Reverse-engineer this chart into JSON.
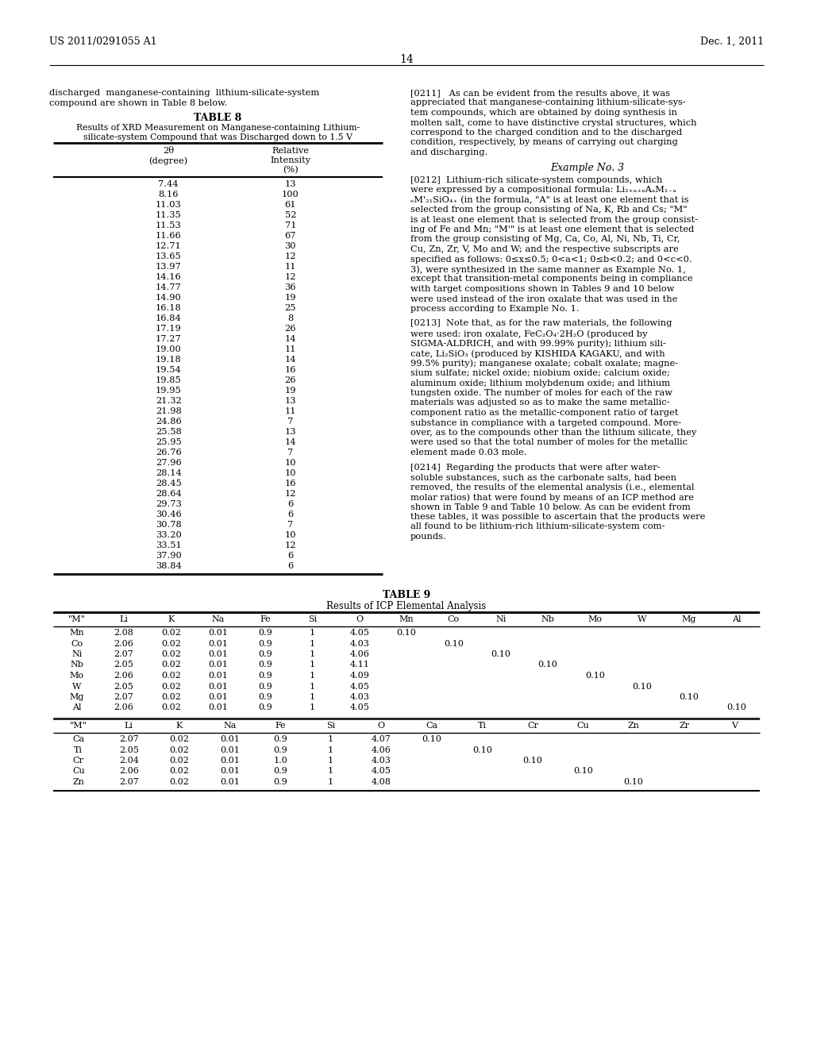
{
  "page_header_left": "US 2011/0291055 A1",
  "page_header_right": "Dec. 1, 2011",
  "page_number": "14",
  "left_col_intro": "discharged  manganese-containing  lithium-silicate-system\ncompound are shown in Table 8 below.",
  "table8_title": "TABLE 8",
  "table8_subtitle1": "Results of XRD Measurement on Manganese-containing Lithium-",
  "table8_subtitle2": "silicate-system Compound that was Discharged down to 1.5 V",
  "table8_col1_header_line1": "2θ",
  "table8_col1_header_line2": "(degree)",
  "table8_col2_header_line1": "Relative",
  "table8_col2_header_line2": "Intensity",
  "table8_col2_header_line3": "(%)",
  "table8_data": [
    [
      "7.44",
      "13"
    ],
    [
      "8.16",
      "100"
    ],
    [
      "11.03",
      "61"
    ],
    [
      "11.35",
      "52"
    ],
    [
      "11.53",
      "71"
    ],
    [
      "11.66",
      "67"
    ],
    [
      "12.71",
      "30"
    ],
    [
      "13.65",
      "12"
    ],
    [
      "13.97",
      "11"
    ],
    [
      "14.16",
      "12"
    ],
    [
      "14.77",
      "36"
    ],
    [
      "14.90",
      "19"
    ],
    [
      "16.18",
      "25"
    ],
    [
      "16.84",
      "8"
    ],
    [
      "17.19",
      "26"
    ],
    [
      "17.27",
      "14"
    ],
    [
      "19.00",
      "11"
    ],
    [
      "19.18",
      "14"
    ],
    [
      "19.54",
      "16"
    ],
    [
      "19.85",
      "26"
    ],
    [
      "19.95",
      "19"
    ],
    [
      "21.32",
      "13"
    ],
    [
      "21.98",
      "11"
    ],
    [
      "24.86",
      "7"
    ],
    [
      "25.58",
      "13"
    ],
    [
      "25.95",
      "14"
    ],
    [
      "26.76",
      "7"
    ],
    [
      "27.96",
      "10"
    ],
    [
      "28.14",
      "10"
    ],
    [
      "28.45",
      "16"
    ],
    [
      "28.64",
      "12"
    ],
    [
      "29.73",
      "6"
    ],
    [
      "30.46",
      "6"
    ],
    [
      "30.78",
      "7"
    ],
    [
      "33.20",
      "10"
    ],
    [
      "33.51",
      "12"
    ],
    [
      "37.90",
      "6"
    ],
    [
      "38.84",
      "6"
    ]
  ],
  "para0211": "[0211]   As can be evident from the results above, it was\nappreciated that manganese-containing lithium-silicate-sys-\ntem compounds, which are obtained by doing synthesis in\nmolten salt, come to have distinctive crystal structures, which\ncorrespond to the charged condition and to the discharged\ncondition, respectively, by means of carrying out charging\nand discharging.",
  "example3": "Example No. 3",
  "para0212_lines": [
    "[0212]  Lithium-rich silicate-system compounds, which",
    "were expressed by a compositional formula: Li₂₊ₐ₊ₑAₐM₁₋ₐ",
    "ₑM'₂₁SiO₄₊⁣ (in the formula, \"A\" is at least one element that is",
    "selected from the group consisting of Na, K, Rb and Cs; \"M\"",
    "is at least one element that is selected from the group consist-",
    "ing of Fe and Mn; \"M'\" is at least one element that is selected",
    "from the group consisting of Mg, Ca, Co, Al, Ni, Nb, Ti, Cr,",
    "Cu, Zn, Zr, V, Mo and W; and the respective subscripts are",
    "specified as follows: 0≤x≤0.5; 0<a<1; 0≤b<0.2; and 0<c<0.",
    "3), were synthesized in the same manner as Example No. 1,",
    "except that transition-metal components being in compliance",
    "with target compositions shown in Tables 9 and 10 below",
    "were used instead of the iron oxalate that was used in the",
    "process according to Example No. 1."
  ],
  "para0213_lines": [
    "[0213]  Note that, as for the raw materials, the following",
    "were used: iron oxalate, FeC₂O₄·2H₂O (produced by",
    "SIGMA-ALDRICH, and with 99.99% purity); lithium sili-",
    "cate, Li₂SiO₃ (produced by KISHIDA KAGAKU, and with",
    "99.5% purity); manganese oxalate; cobalt oxalate; magne-",
    "sium sulfate; nickel oxide; niobium oxide; calcium oxide;",
    "aluminum oxide; lithium molybdenum oxide; and lithium",
    "tungsten oxide. The number of moles for each of the raw",
    "materials was adjusted so as to make the same metallic-",
    "component ratio as the metallic-component ratio of target",
    "substance in compliance with a targeted compound. More-",
    "over, as to the compounds other than the lithium silicate, they",
    "were used so that the total number of moles for the metallic",
    "element made 0.03 mole."
  ],
  "para0214_lines": [
    "[0214]  Regarding the products that were after water-",
    "soluble substances, such as the carbonate salts, had been",
    "removed, the results of the elemental analysis (i.e., elemental",
    "molar ratios) that were found by means of an ICP method are",
    "shown in Table 9 and Table 10 below. As can be evident from",
    "these tables, it was possible to ascertain that the products were",
    "all found to be lithium-rich lithium-silicate-system com-",
    "pounds."
  ],
  "table9_title": "TABLE 9",
  "table9_subtitle": "Results of ICP Elemental Analysis",
  "table9_headers1": [
    "\"M\"",
    "Li",
    "K",
    "Na",
    "Fe",
    "Si",
    "O",
    "Mn",
    "Co",
    "Ni",
    "Nb",
    "Mo",
    "W",
    "Mg",
    "Al"
  ],
  "table9_data1": [
    [
      "Mn",
      "2.08",
      "0.02",
      "0.01",
      "0.9",
      "1",
      "4.05",
      "0.10",
      "",
      "",
      "",
      "",
      "",
      "",
      ""
    ],
    [
      "Co",
      "2.06",
      "0.02",
      "0.01",
      "0.9",
      "1",
      "4.03",
      "",
      "0.10",
      "",
      "",
      "",
      "",
      "",
      ""
    ],
    [
      "Ni",
      "2.07",
      "0.02",
      "0.01",
      "0.9",
      "1",
      "4.06",
      "",
      "",
      "0.10",
      "",
      "",
      "",
      "",
      ""
    ],
    [
      "Nb",
      "2.05",
      "0.02",
      "0.01",
      "0.9",
      "1",
      "4.11",
      "",
      "",
      "",
      "0.10",
      "",
      "",
      "",
      ""
    ],
    [
      "Mo",
      "2.06",
      "0.02",
      "0.01",
      "0.9",
      "1",
      "4.09",
      "",
      "",
      "",
      "",
      "0.10",
      "",
      "",
      ""
    ],
    [
      "W",
      "2.05",
      "0.02",
      "0.01",
      "0.9",
      "1",
      "4.05",
      "",
      "",
      "",
      "",
      "",
      "0.10",
      "",
      ""
    ],
    [
      "Mg",
      "2.07",
      "0.02",
      "0.01",
      "0.9",
      "1",
      "4.03",
      "",
      "",
      "",
      "",
      "",
      "",
      "0.10",
      ""
    ],
    [
      "Al",
      "2.06",
      "0.02",
      "0.01",
      "0.9",
      "1",
      "4.05",
      "",
      "",
      "",
      "",
      "",
      "",
      "",
      "0.10"
    ]
  ],
  "table9_headers2": [
    "\"M\"",
    "Li",
    "K",
    "Na",
    "Fe",
    "Si",
    "O",
    "Ca",
    "Ti",
    "Cr",
    "Cu",
    "Zn",
    "Zr",
    "V"
  ],
  "table9_data2": [
    [
      "Ca",
      "2.07",
      "0.02",
      "0.01",
      "0.9",
      "1",
      "4.07",
      "0.10",
      "",
      "",
      "",
      "",
      "",
      ""
    ],
    [
      "Ti",
      "2.05",
      "0.02",
      "0.01",
      "0.9",
      "1",
      "4.06",
      "",
      "0.10",
      "",
      "",
      "",
      "",
      ""
    ],
    [
      "Cr",
      "2.04",
      "0.02",
      "0.01",
      "1.0",
      "1",
      "4.03",
      "",
      "",
      "0.10",
      "",
      "",
      "",
      ""
    ],
    [
      "Cu",
      "2.06",
      "0.02",
      "0.01",
      "0.9",
      "1",
      "4.05",
      "",
      "",
      "",
      "0.10",
      "",
      "",
      ""
    ],
    [
      "Zn",
      "2.07",
      "0.02",
      "0.01",
      "0.9",
      "1",
      "4.08",
      "",
      "",
      "",
      "",
      "0.10",
      "",
      ""
    ]
  ]
}
